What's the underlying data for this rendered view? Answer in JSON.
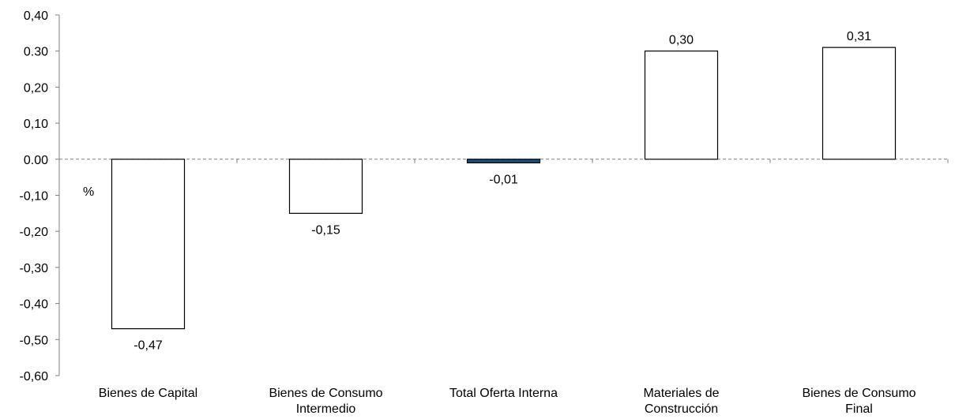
{
  "chart_data": {
    "type": "bar",
    "title": "",
    "xlabel": "",
    "ylabel": "%",
    "ylim": [
      -0.6,
      0.4
    ],
    "yticks": [
      0.4,
      0.3,
      0.2,
      0.1,
      0.0,
      -0.1,
      -0.2,
      -0.3,
      -0.4,
      -0.5,
      -0.6
    ],
    "ytick_labels": [
      "0,40",
      "0.30",
      "0,20",
      "0,10",
      "0.00",
      "-0,10",
      "-0,20",
      "-0,30",
      "-0,40",
      "-0,50",
      "-0,60"
    ],
    "zero_line": "dashed",
    "grid": false,
    "legend": "none",
    "categories": [
      [
        "Bienes de Capital"
      ],
      [
        "Bienes de Consumo",
        "Intermedio"
      ],
      [
        "Total Oferta Interna"
      ],
      [
        "Materiales de",
        "Construcción"
      ],
      [
        "Bienes de Consumo",
        "Final"
      ]
    ],
    "values": [
      -0.47,
      -0.15,
      -0.01,
      0.3,
      0.31
    ],
    "value_labels": [
      "-0,47",
      "-0,15",
      "-0,01",
      "0,30",
      "0,31"
    ],
    "bar_colors": [
      "#ffffff",
      "#ffffff",
      "#1f4e79",
      "#ffffff",
      "#ffffff"
    ]
  }
}
